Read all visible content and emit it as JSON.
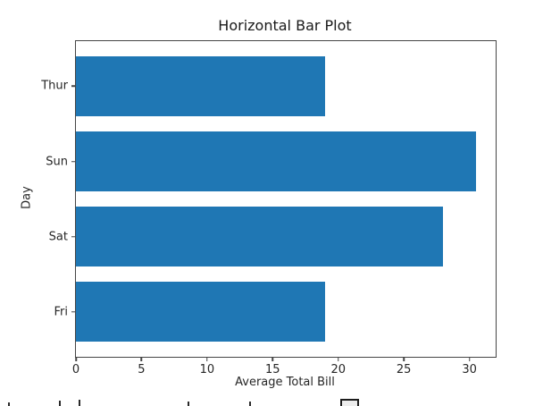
{
  "chart_data": {
    "type": "bar",
    "orientation": "horizontal",
    "title": "Horizontal Bar Plot",
    "xlabel": "Average Total Bill",
    "ylabel": "Day",
    "categories": [
      "Thur",
      "Sun",
      "Sat",
      "Fri"
    ],
    "values": [
      19,
      30.5,
      28,
      19
    ],
    "xticks": [
      0,
      5,
      10,
      15,
      20,
      25,
      30
    ],
    "xlim": [
      0,
      32
    ],
    "bar_color": "#1f77b4",
    "grid": false,
    "legend": "none",
    "background": "#ffffff"
  }
}
